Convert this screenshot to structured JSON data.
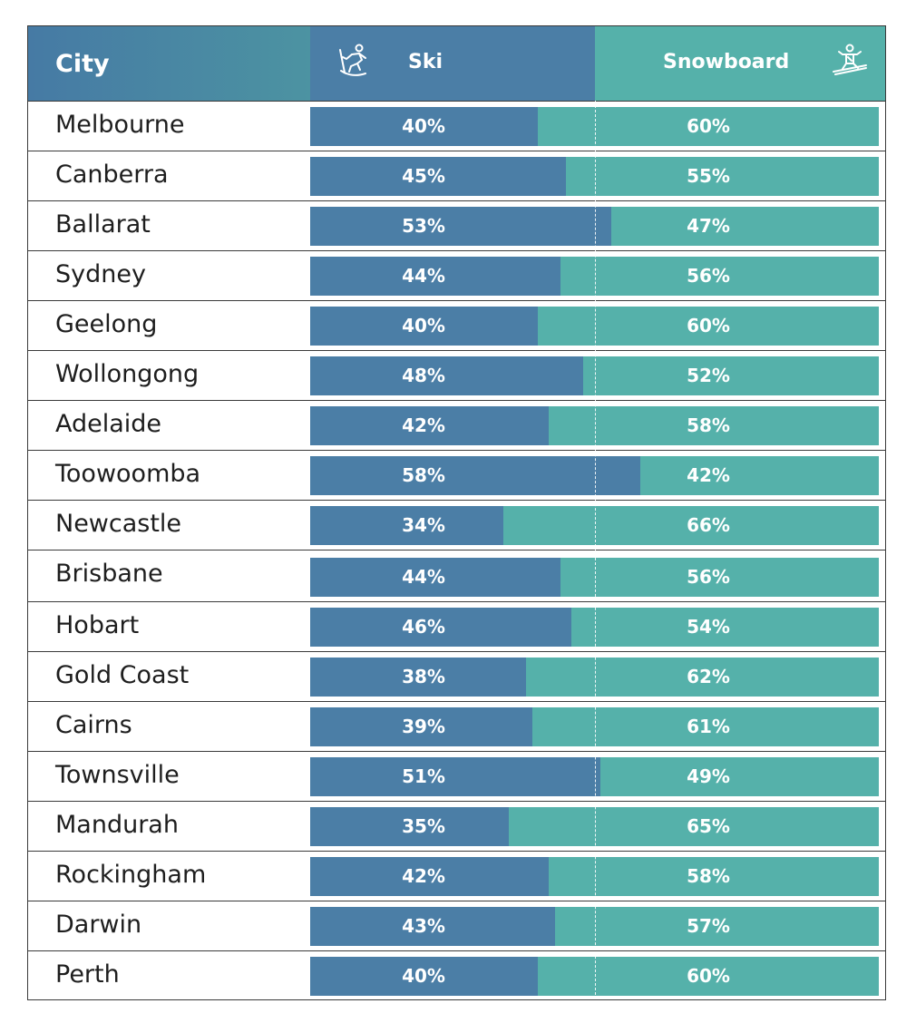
{
  "header": {
    "city_label": "City",
    "ski_label": "Ski",
    "snowboard_label": "Snowboard",
    "ski_icon": "skier-icon",
    "snowboard_icon": "snowboarder-icon"
  },
  "colors": {
    "ski": "#4b7ea6",
    "snowboard": "#55b1aa",
    "header_city": "#467aa4"
  },
  "chart_data": {
    "type": "bar",
    "stacked": true,
    "orientation": "horizontal",
    "categories": [
      "Melbourne",
      "Canberra",
      "Ballarat",
      "Sydney",
      "Geelong",
      "Wollongong",
      "Adelaide",
      "Toowoomba",
      "Newcastle",
      "Brisbane",
      "Hobart",
      "Gold Coast",
      "Cairns",
      "Townsville",
      "Mandurah",
      "Rockingham",
      "Darwin",
      "Perth"
    ],
    "series": [
      {
        "name": "Ski",
        "values": [
          40,
          45,
          53,
          44,
          40,
          48,
          42,
          58,
          34,
          44,
          46,
          38,
          39,
          51,
          35,
          42,
          43,
          40
        ]
      },
      {
        "name": "Snowboard",
        "values": [
          60,
          55,
          47,
          56,
          60,
          52,
          58,
          42,
          66,
          56,
          54,
          62,
          61,
          49,
          65,
          58,
          57,
          60
        ]
      }
    ],
    "xlim": [
      0,
      100
    ],
    "unit": "%"
  },
  "rows": [
    {
      "city": "Melbourne",
      "ski": "40%",
      "snowboard": "60%"
    },
    {
      "city": "Canberra",
      "ski": "45%",
      "snowboard": "55%"
    },
    {
      "city": "Ballarat",
      "ski": "53%",
      "snowboard": "47%"
    },
    {
      "city": "Sydney",
      "ski": "44%",
      "snowboard": "56%"
    },
    {
      "city": "Geelong",
      "ski": "40%",
      "snowboard": "60%"
    },
    {
      "city": "Wollongong",
      "ski": "48%",
      "snowboard": "52%"
    },
    {
      "city": "Adelaide",
      "ski": "42%",
      "snowboard": "58%"
    },
    {
      "city": "Toowoomba",
      "ski": "58%",
      "snowboard": "42%"
    },
    {
      "city": "Newcastle",
      "ski": "34%",
      "snowboard": "66%"
    },
    {
      "city": "Brisbane",
      "ski": "44%",
      "snowboard": "56%"
    },
    {
      "city": "Hobart",
      "ski": "46%",
      "snowboard": "54%"
    },
    {
      "city": "Gold Coast",
      "ski": "38%",
      "snowboard": "62%"
    },
    {
      "city": "Cairns",
      "ski": "39%",
      "snowboard": "61%"
    },
    {
      "city": "Townsville",
      "ski": "51%",
      "snowboard": "49%"
    },
    {
      "city": "Mandurah",
      "ski": "35%",
      "snowboard": "65%"
    },
    {
      "city": "Rockingham",
      "ski": "42%",
      "snowboard": "58%"
    },
    {
      "city": "Darwin",
      "ski": "43%",
      "snowboard": "57%"
    },
    {
      "city": "Perth",
      "ski": "40%",
      "snowboard": "60%"
    }
  ]
}
